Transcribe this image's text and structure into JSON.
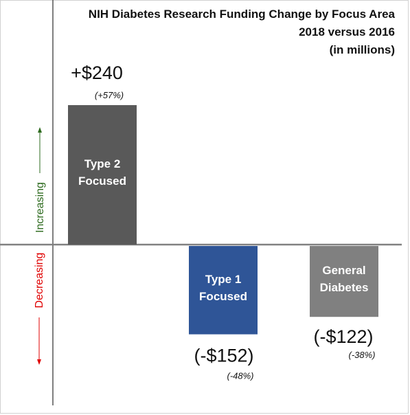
{
  "title": {
    "line1": "NIH Diabetes Research Funding Change by Focus Area",
    "line2": "2018 versus 2016",
    "line3": "(in millions)"
  },
  "direction": {
    "up_label": "Increasing",
    "down_label": "Decreasing",
    "up_color": "#2e6b1f",
    "down_color": "#e00000"
  },
  "chart_data": {
    "type": "bar",
    "categories": [
      "Type 2 Focused",
      "Type 1 Focused",
      "General Diabetes"
    ],
    "values": [
      240,
      -152,
      -122
    ],
    "value_labels": [
      "+$240",
      "(-$152)",
      "(-$122)"
    ],
    "pct_labels": [
      "(+57%)",
      "(-48%)",
      "(-38%)"
    ],
    "bar_text": [
      [
        "Type 2",
        "Focused"
      ],
      [
        "Type 1",
        "Focused"
      ],
      [
        "General",
        "Diabetes"
      ]
    ],
    "colors": [
      "#595959",
      "#2f5597",
      "#808080"
    ],
    "unit": "$ millions"
  }
}
